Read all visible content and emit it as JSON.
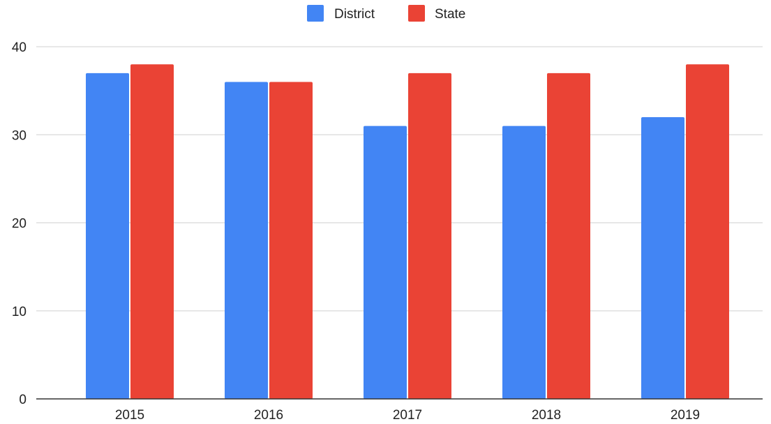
{
  "chart_data": {
    "type": "bar",
    "title": "",
    "xlabel": "",
    "ylabel": "",
    "categories": [
      "2015",
      "2016",
      "2017",
      "2018",
      "2019"
    ],
    "series": [
      {
        "name": "District",
        "color": "#4285f4",
        "values": [
          37,
          36,
          31,
          31,
          32
        ]
      },
      {
        "name": "State",
        "color": "#ea4335",
        "values": [
          38,
          36,
          37,
          37,
          38
        ]
      }
    ],
    "ylim": [
      0,
      40
    ],
    "yticks": [
      0,
      10,
      20,
      30,
      40
    ],
    "grid": true,
    "legend_position": "top-center"
  }
}
